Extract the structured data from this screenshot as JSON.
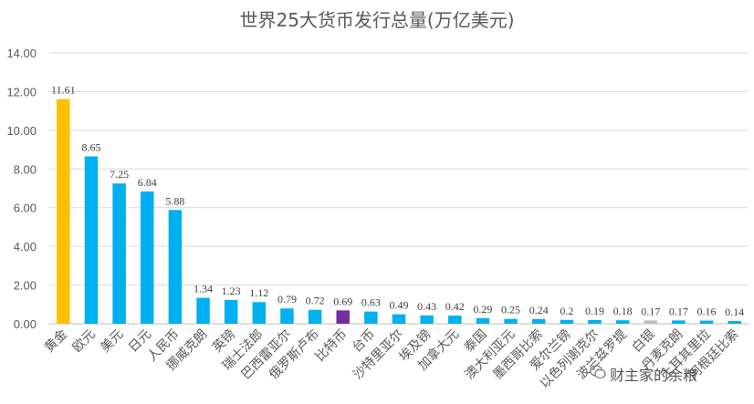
{
  "chart_data": {
    "type": "bar",
    "title": "世界25大货币发行总量(万亿美元)",
    "xlabel": "",
    "ylabel": "",
    "ylim": [
      0,
      14
    ],
    "yticks": [
      "0.00",
      "2.00",
      "4.00",
      "6.00",
      "8.00",
      "10.00",
      "12.00",
      "14.00"
    ],
    "grid": true,
    "legend": "none",
    "categories": [
      "黄金",
      "欧元",
      "美元",
      "日元",
      "人民币",
      "挪威克朗",
      "英镑",
      "瑞士法郎",
      "巴西雷亚尔",
      "俄罗斯卢布",
      "比特币",
      "台币",
      "沙特里亚尔",
      "埃及镑",
      "加拿大元",
      "泰国",
      "澳大利亚元",
      "墨西哥比索",
      "爱尔兰镑",
      "以色列谢克尔",
      "波兰兹罗提",
      "白银",
      "丹麦克朗",
      "土耳其里拉",
      "阿根廷比索"
    ],
    "values": [
      11.61,
      8.65,
      7.25,
      6.84,
      5.88,
      1.34,
      1.23,
      1.12,
      0.79,
      0.72,
      0.69,
      0.63,
      0.49,
      0.43,
      0.42,
      0.29,
      0.25,
      0.24,
      0.2,
      0.19,
      0.18,
      0.17,
      0.17,
      0.16,
      0.14
    ],
    "data_labels": [
      "11.61",
      "8.65",
      "7.25",
      "6.84",
      "5.88",
      "1.34",
      "1.23",
      "1.12",
      "0.79",
      "0.72",
      "0.69",
      "0.63",
      "0.49",
      "0.43",
      "0.42",
      "0.29",
      "0.25",
      "0.24",
      "0.2",
      "0.19",
      "0.18",
      "0.17",
      "0.17",
      "0.16",
      "0.14"
    ],
    "colors": {
      "default": "#00B0F0",
      "gold": "#FFC000",
      "bitcoin": "#7030A0",
      "silver": "#BFBFBF",
      "grid": "#D9D9D9",
      "text": "#595959"
    },
    "bar_colors": [
      "#FFC000",
      "#00B0F0",
      "#00B0F0",
      "#00B0F0",
      "#00B0F0",
      "#00B0F0",
      "#00B0F0",
      "#00B0F0",
      "#00B0F0",
      "#00B0F0",
      "#7030A0",
      "#00B0F0",
      "#00B0F0",
      "#00B0F0",
      "#00B0F0",
      "#00B0F0",
      "#00B0F0",
      "#00B0F0",
      "#00B0F0",
      "#00B0F0",
      "#00B0F0",
      "#BFBFBF",
      "#00B0F0",
      "#00B0F0",
      "#00B0F0"
    ]
  },
  "watermark": {
    "text": "财主家的余粮",
    "icon": "wechat-icon"
  }
}
